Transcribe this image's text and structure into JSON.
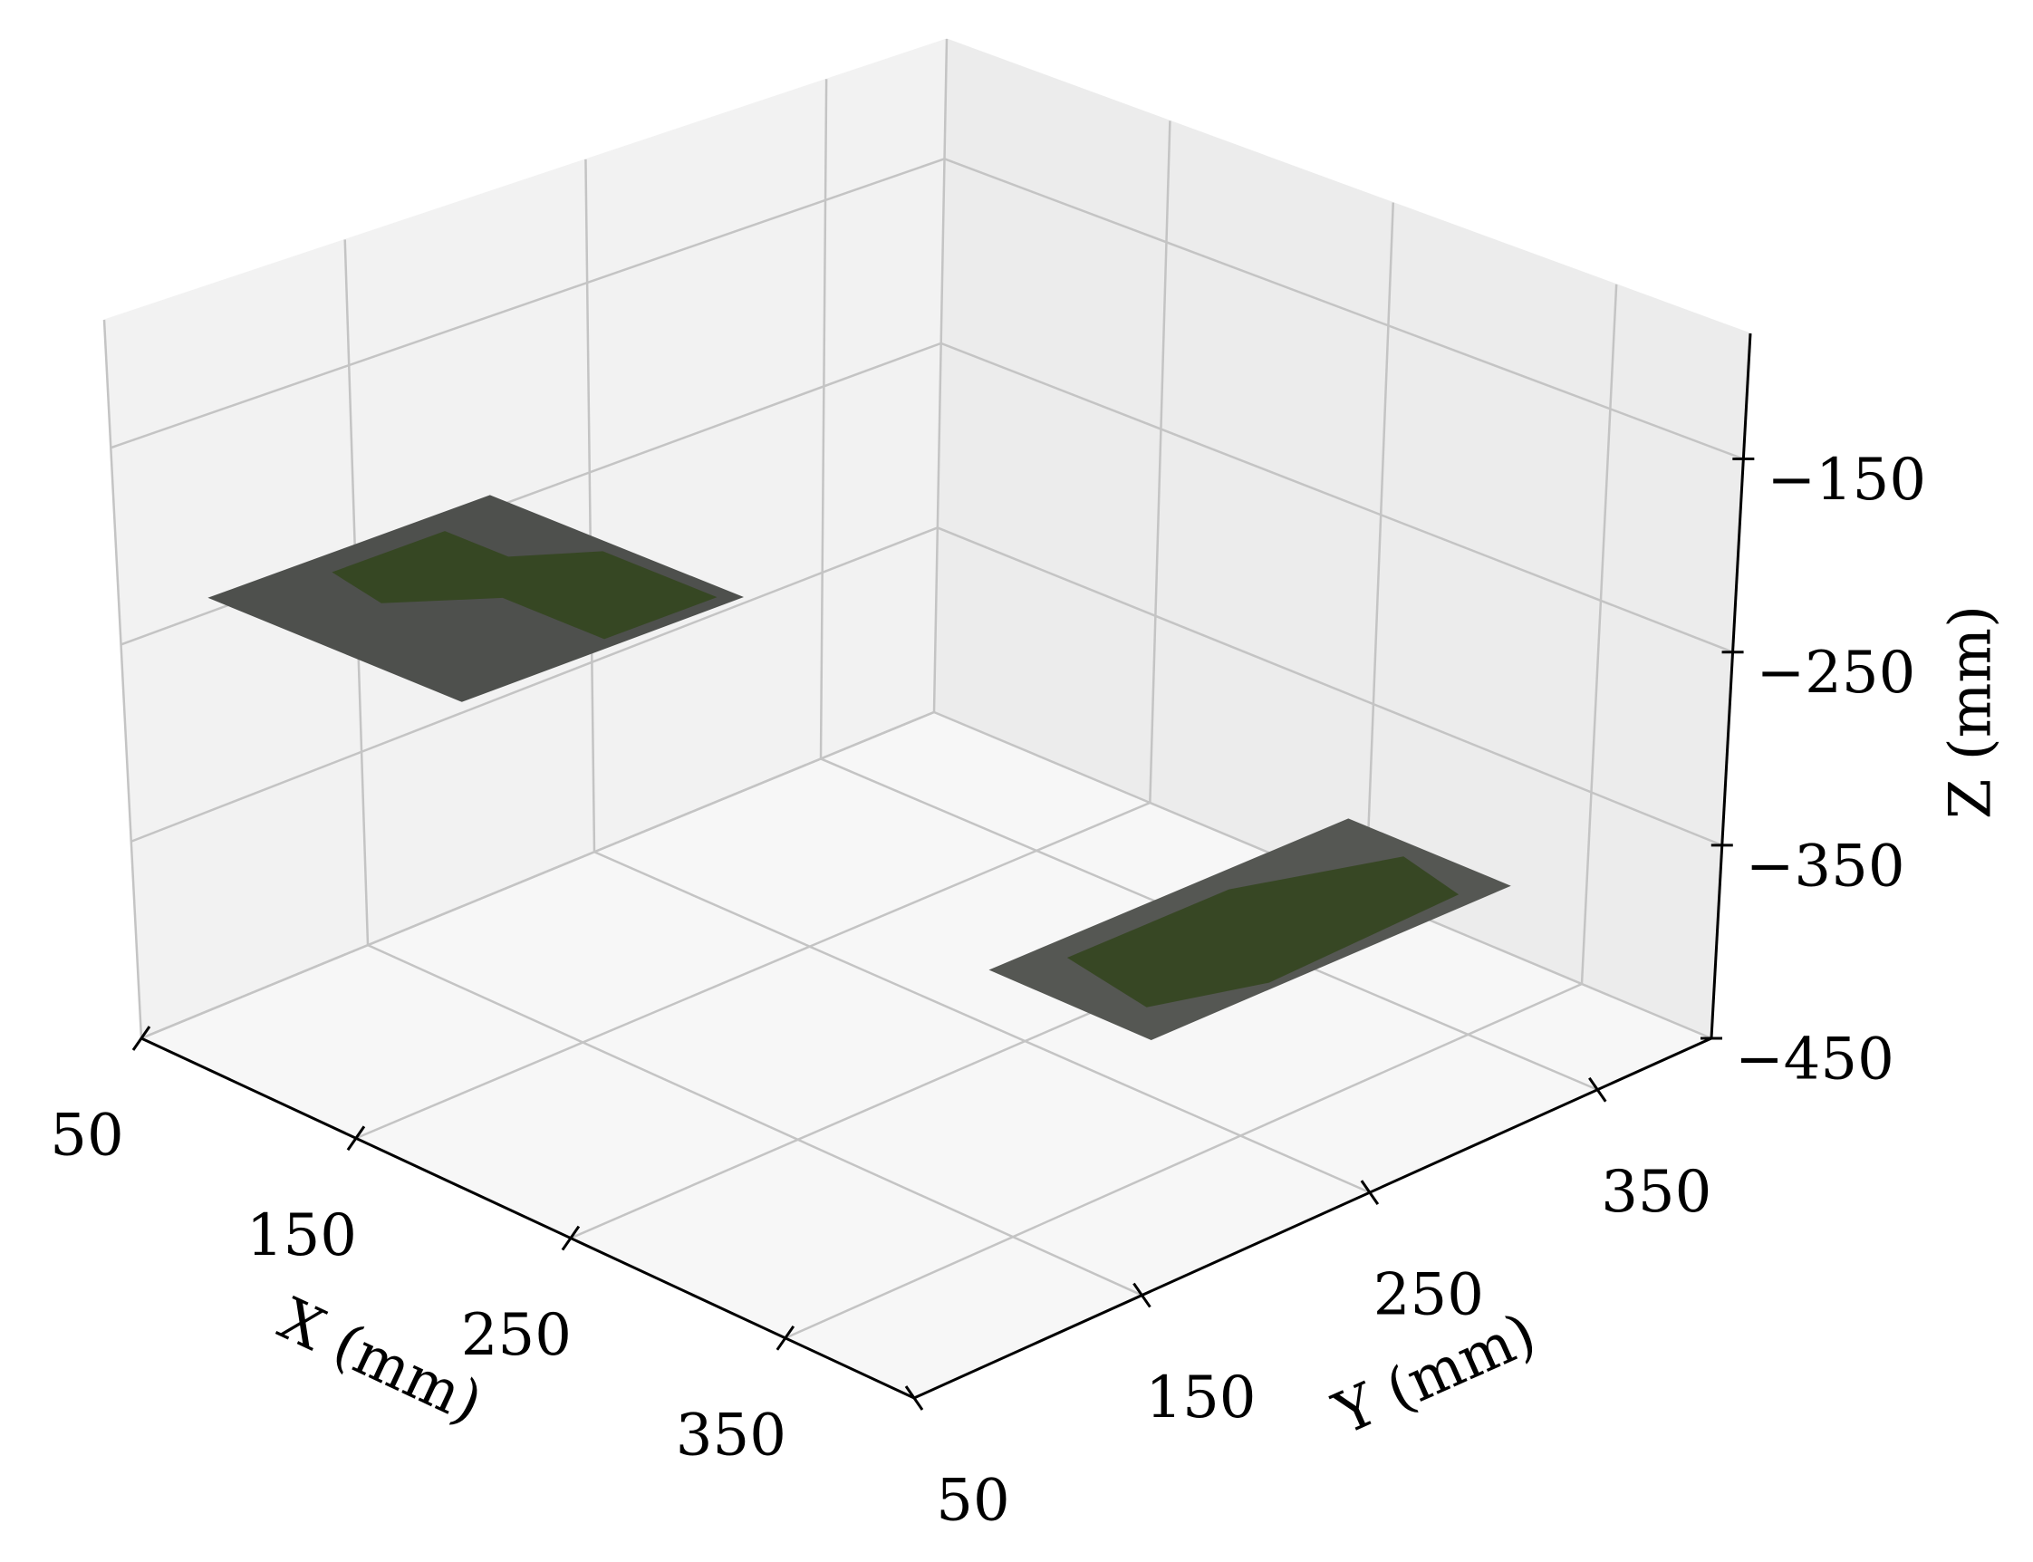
{
  "chart_data": {
    "type": "image3d",
    "xlabel": "X (mm)",
    "ylabel": "Y (mm)",
    "zlabel": "Z (mm)",
    "xlim": [
      50,
      410
    ],
    "ylim": [
      50,
      400
    ],
    "zlim": [
      -450,
      -85
    ],
    "xticks": [
      50,
      150,
      250,
      350
    ],
    "yticks": [
      50,
      150,
      250,
      350
    ],
    "zticks": [
      {
        "value": -450,
        "label": "−450"
      },
      {
        "value": -350,
        "label": "−350"
      },
      {
        "value": -250,
        "label": "−250"
      },
      {
        "value": -150,
        "label": "−150"
      }
    ],
    "grid": true,
    "patches": [
      {
        "x": [
          68,
          183
        ],
        "y": [
          71,
          191
        ],
        "z": -227,
        "color": "#4e504d"
      },
      {
        "x": [
          256,
          331
        ],
        "y": [
          228,
          385
        ],
        "z": -400,
        "color": "#555753"
      }
    ]
  }
}
